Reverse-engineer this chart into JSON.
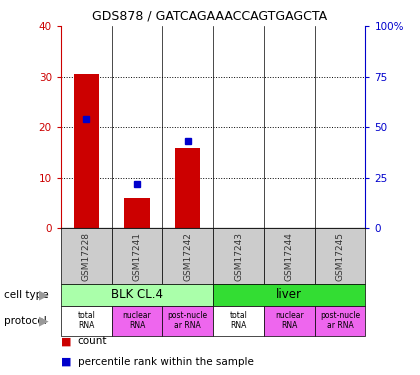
{
  "title": "GDS878 / GATCAGAAACCAGTGAGCTA",
  "samples": [
    "GSM17228",
    "GSM17241",
    "GSM17242",
    "GSM17243",
    "GSM17244",
    "GSM17245"
  ],
  "count_values": [
    30.5,
    6.0,
    16.0,
    0,
    0,
    0
  ],
  "percentile_values": [
    54.0,
    22.0,
    43.0,
    0,
    0,
    0
  ],
  "left_ylim": [
    0,
    40
  ],
  "right_ylim": [
    0,
    100
  ],
  "left_yticks": [
    0,
    10,
    20,
    30,
    40
  ],
  "right_yticks": [
    0,
    25,
    50,
    75,
    100
  ],
  "right_yticklabels": [
    "0",
    "25",
    "50",
    "75",
    "100%"
  ],
  "cell_types": [
    {
      "label": "BLK CL.4",
      "start": 0,
      "end": 3,
      "color": "#AAFFAA"
    },
    {
      "label": "liver",
      "start": 3,
      "end": 6,
      "color": "#33DD33"
    }
  ],
  "protocols": [
    {
      "label": "total\nRNA",
      "color": "#FFFFFF"
    },
    {
      "label": "nuclear\nRNA",
      "color": "#EE66EE"
    },
    {
      "label": "post-nucle\nar RNA",
      "color": "#EE66EE"
    },
    {
      "label": "total\nRNA",
      "color": "#FFFFFF"
    },
    {
      "label": "nuclear\nRNA",
      "color": "#EE66EE"
    },
    {
      "label": "post-nucle\nar RNA",
      "color": "#EE66EE"
    }
  ],
  "count_color": "#CC0000",
  "percentile_color": "#0000CC",
  "sample_bg_color": "#CCCCCC",
  "left_tick_color": "#CC0000",
  "right_tick_color": "#0000CC",
  "grid_ticks": [
    10,
    20,
    30
  ],
  "bar_width": 0.5
}
